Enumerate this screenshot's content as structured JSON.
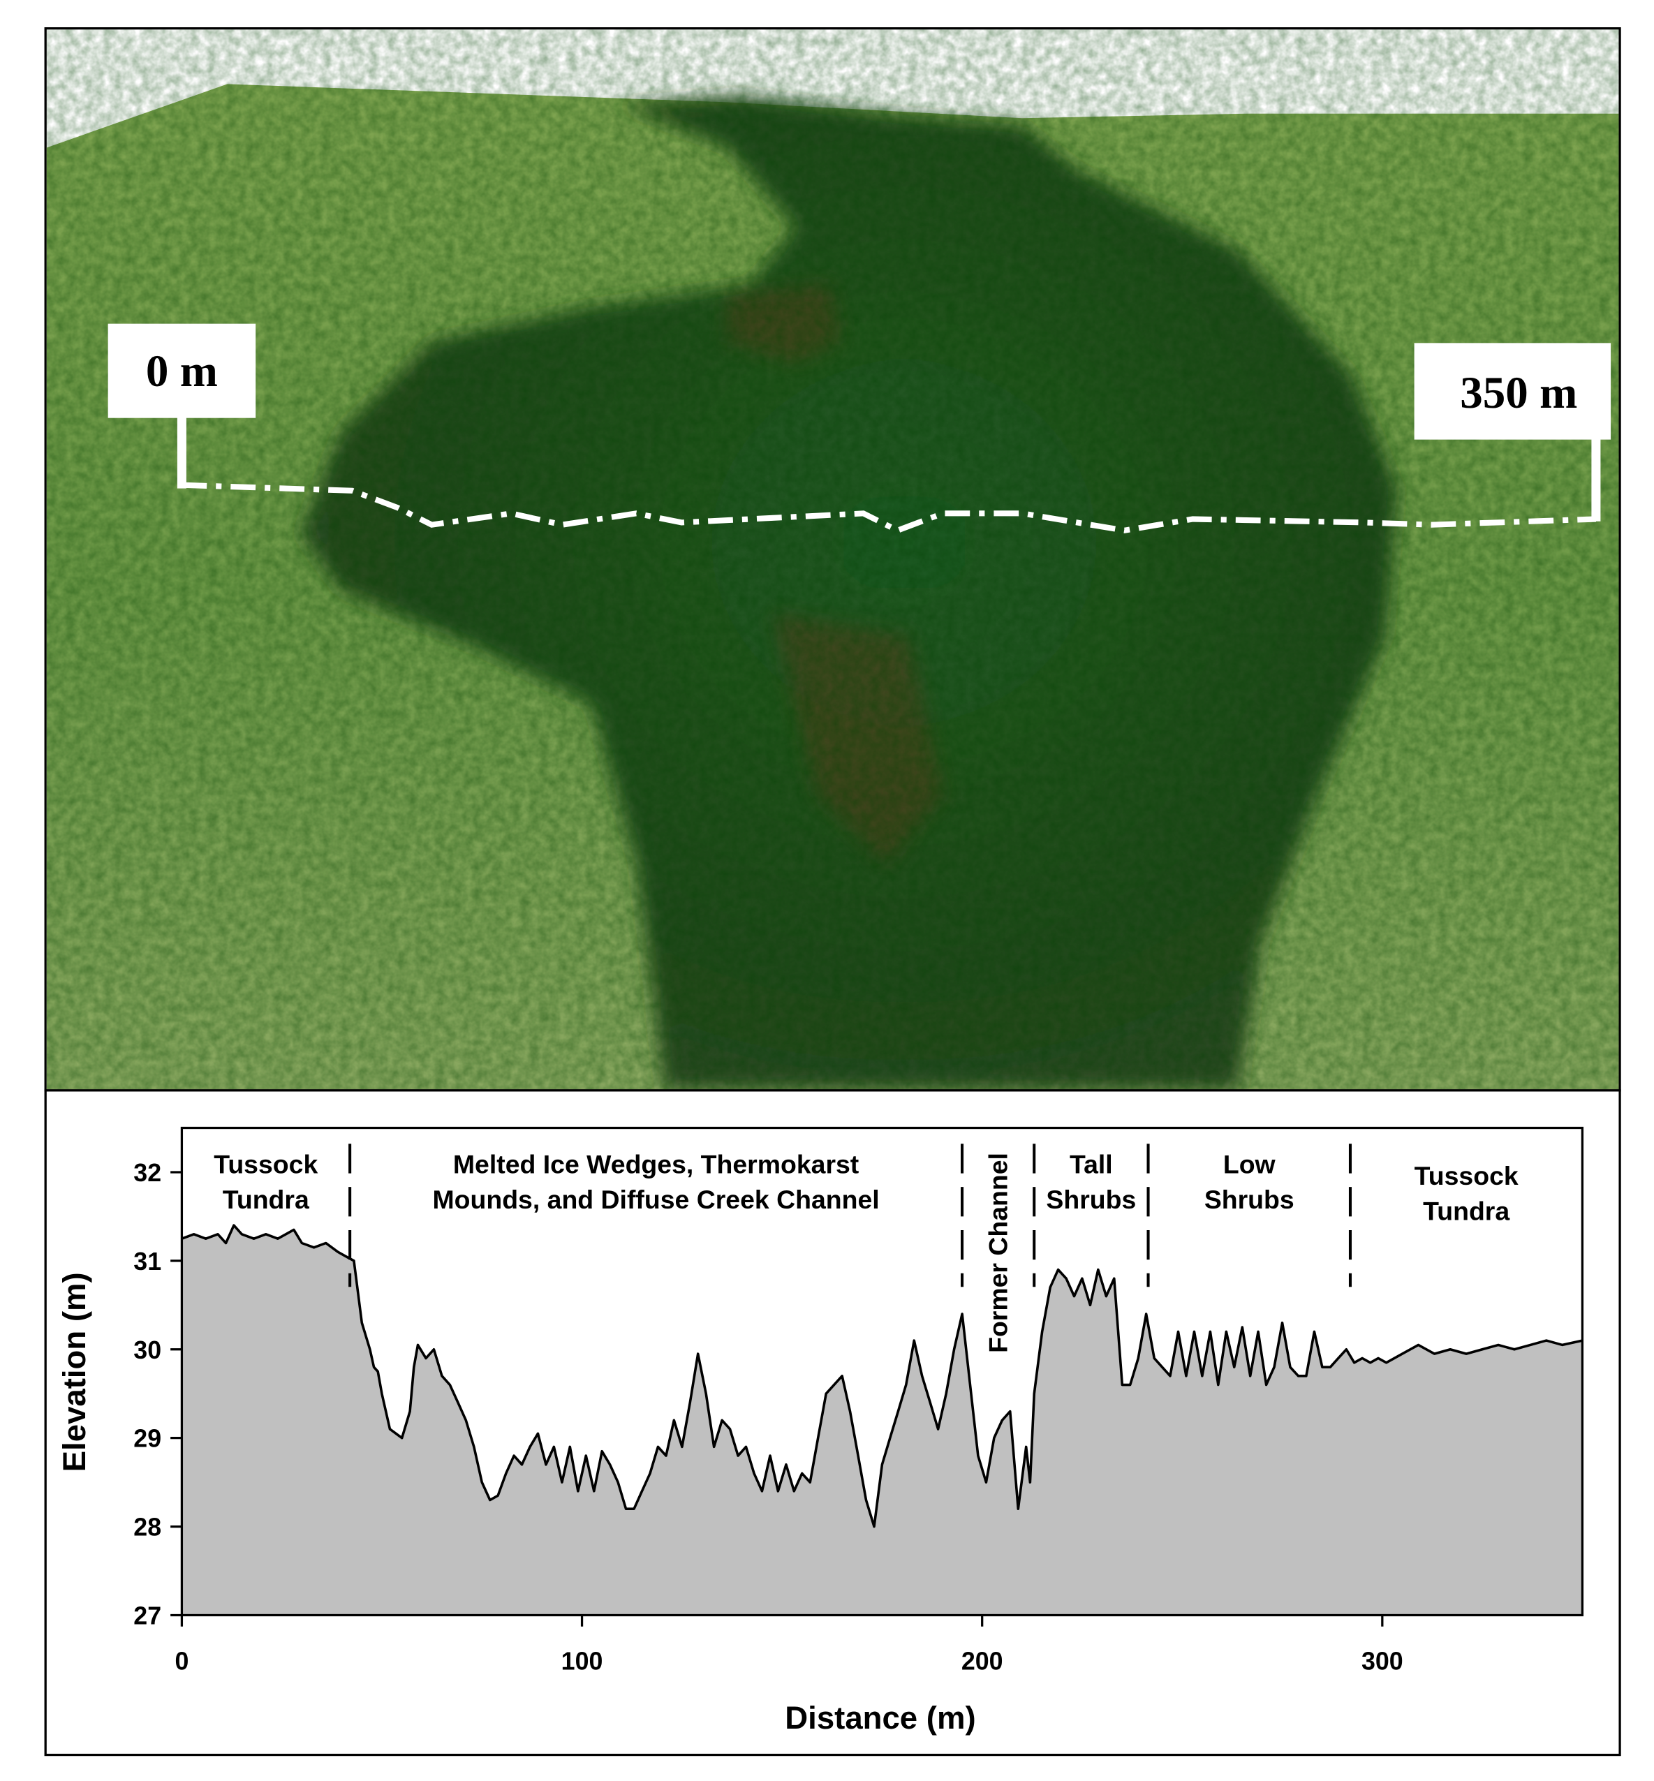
{
  "photo": {
    "start_label": "0 m",
    "end_label": "350 m"
  },
  "chart_data": {
    "type": "area",
    "xlabel": "Distance (m)",
    "ylabel": "Elevation (m)",
    "xlim": [
      0,
      350
    ],
    "ylim": [
      27,
      32.5
    ],
    "xticks": [
      0,
      100,
      200,
      300
    ],
    "yticks": [
      27,
      28,
      29,
      30,
      31,
      32
    ],
    "color": "#c0c0c0",
    "line_color": "#000000",
    "zones": [
      {
        "start": 0,
        "end": 42,
        "label": [
          "Tussock",
          "Tundra"
        ]
      },
      {
        "start": 42,
        "end": 195,
        "label": [
          "Melted Ice Wedges, Thermokarst",
          "Mounds, and Diffuse Creek Channel"
        ]
      },
      {
        "start": 195,
        "end": 213,
        "label": [
          "Former Channel"
        ]
      },
      {
        "start": 213,
        "end": 241.5,
        "label": [
          "Tall",
          "Shrubs"
        ]
      },
      {
        "start": 241.5,
        "end": 292,
        "label": [
          "Low",
          "Shrubs"
        ]
      },
      {
        "start": 292,
        "end": 350,
        "label": [
          "Tussock",
          "Tundra"
        ]
      }
    ],
    "x": [
      0,
      3,
      6,
      9,
      11,
      13,
      15,
      18,
      21,
      24,
      26,
      28,
      30,
      33,
      36,
      39,
      41,
      43,
      45,
      47,
      48,
      49,
      50,
      52,
      55,
      57,
      58,
      59,
      61,
      63,
      65,
      67,
      69,
      71,
      73,
      75,
      77,
      79,
      81,
      83,
      85,
      87,
      89,
      91,
      93,
      95,
      97,
      99,
      101,
      103,
      105,
      107,
      109,
      111,
      113,
      115,
      117,
      119,
      121,
      123,
      125,
      127,
      129,
      131,
      133,
      135,
      137,
      139,
      141,
      143,
      145,
      147,
      149,
      151,
      153,
      155,
      157,
      159,
      161,
      163,
      165,
      167,
      169,
      171,
      173,
      175,
      177,
      179,
      181,
      183,
      185,
      187,
      189,
      191,
      193,
      195,
      197,
      199,
      201,
      203,
      205,
      207,
      209,
      211,
      212,
      213,
      215,
      217,
      219,
      221,
      223,
      225,
      227,
      229,
      231,
      233,
      235,
      237,
      239,
      241,
      243,
      245,
      247,
      249,
      251,
      253,
      255,
      257,
      259,
      261,
      263,
      265,
      267,
      269,
      271,
      273,
      275,
      277,
      279,
      281,
      283,
      285,
      287,
      289,
      291,
      293,
      295,
      297,
      299,
      301,
      305,
      309,
      313,
      317,
      321,
      325,
      329,
      333,
      337,
      341,
      345,
      350
    ],
    "values": [
      31.25,
      31.3,
      31.25,
      31.3,
      31.2,
      31.4,
      31.3,
      31.25,
      31.3,
      31.25,
      31.3,
      31.35,
      31.2,
      31.15,
      31.2,
      31.1,
      31.05,
      31.0,
      30.3,
      30.0,
      29.8,
      29.75,
      29.5,
      29.1,
      29.0,
      29.3,
      29.8,
      30.05,
      29.9,
      30.0,
      29.7,
      29.6,
      29.4,
      29.2,
      28.9,
      28.5,
      28.3,
      28.35,
      28.6,
      28.8,
      28.7,
      28.9,
      29.05,
      28.7,
      28.9,
      28.5,
      28.9,
      28.4,
      28.8,
      28.4,
      28.85,
      28.7,
      28.5,
      28.2,
      28.2,
      28.4,
      28.6,
      28.9,
      28.8,
      29.2,
      28.9,
      29.4,
      29.95,
      29.5,
      28.9,
      29.2,
      29.1,
      28.8,
      28.9,
      28.6,
      28.4,
      28.8,
      28.4,
      28.7,
      28.4,
      28.6,
      28.5,
      29.0,
      29.5,
      29.6,
      29.7,
      29.3,
      28.8,
      28.3,
      28.0,
      28.7,
      29.0,
      29.3,
      29.6,
      30.1,
      29.7,
      29.4,
      29.1,
      29.5,
      30.0,
      30.4,
      29.6,
      28.8,
      28.5,
      29.0,
      29.2,
      29.3,
      28.2,
      28.9,
      28.5,
      29.5,
      30.2,
      30.7,
      30.9,
      30.8,
      30.6,
      30.8,
      30.5,
      30.9,
      30.6,
      30.8,
      29.6,
      29.6,
      29.9,
      30.4,
      29.9,
      29.8,
      29.7,
      30.2,
      29.7,
      30.2,
      29.7,
      30.2,
      29.6,
      30.2,
      29.8,
      30.25,
      29.7,
      30.2,
      29.6,
      29.8,
      30.3,
      29.8,
      29.7,
      29.7,
      30.2,
      29.8,
      29.8,
      29.9,
      30.0,
      29.85,
      29.9,
      29.85,
      29.9,
      29.85,
      29.95,
      30.05,
      29.95,
      30.0,
      29.95,
      30.0,
      30.05,
      30.0,
      30.05,
      30.1,
      30.05,
      30.1
    ]
  }
}
